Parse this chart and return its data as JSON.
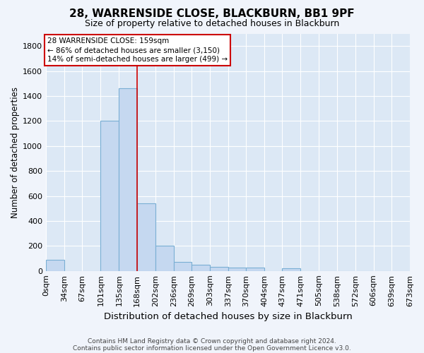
{
  "title1": "28, WARRENSIDE CLOSE, BLACKBURN, BB1 9PF",
  "title2": "Size of property relative to detached houses in Blackburn",
  "xlabel": "Distribution of detached houses by size in Blackburn",
  "ylabel": "Number of detached properties",
  "footnote1": "Contains HM Land Registry data © Crown copyright and database right 2024.",
  "footnote2": "Contains public sector information licensed under the Open Government Licence v3.0.",
  "annotation_line1": "28 WARRENSIDE CLOSE: 159sqm",
  "annotation_line2": "← 86% of detached houses are smaller (3,150)",
  "annotation_line3": "14% of semi-detached houses are larger (499) →",
  "bin_edges": [
    0,
    34,
    67,
    101,
    135,
    168,
    202,
    236,
    269,
    303,
    337,
    370,
    404,
    437,
    471,
    505,
    538,
    572,
    606,
    639,
    673
  ],
  "bin_labels": [
    "0sqm",
    "34sqm",
    "67sqm",
    "101sqm",
    "135sqm",
    "168sqm",
    "202sqm",
    "236sqm",
    "269sqm",
    "303sqm",
    "337sqm",
    "370sqm",
    "404sqm",
    "437sqm",
    "471sqm",
    "505sqm",
    "538sqm",
    "572sqm",
    "606sqm",
    "639sqm",
    "673sqm"
  ],
  "bar_heights": [
    90,
    0,
    0,
    1200,
    1460,
    540,
    200,
    70,
    50,
    35,
    25,
    25,
    0,
    20,
    0,
    0,
    0,
    0,
    0,
    0
  ],
  "bar_color": "#c5d8f0",
  "bar_edge_color": "#7aafd4",
  "vline_x": 168,
  "vline_color": "#cc0000",
  "ylim": [
    0,
    1900
  ],
  "bg_color": "#f0f4fb",
  "plot_bg_color": "#dce8f5",
  "annotation_box_color": "#ffffff",
  "annotation_box_edge": "#cc0000",
  "grid_color": "#ffffff",
  "title1_fontsize": 11,
  "title2_fontsize": 9,
  "ylabel_fontsize": 8.5,
  "xlabel_fontsize": 9.5,
  "tick_fontsize": 8,
  "footnote_fontsize": 6.5
}
